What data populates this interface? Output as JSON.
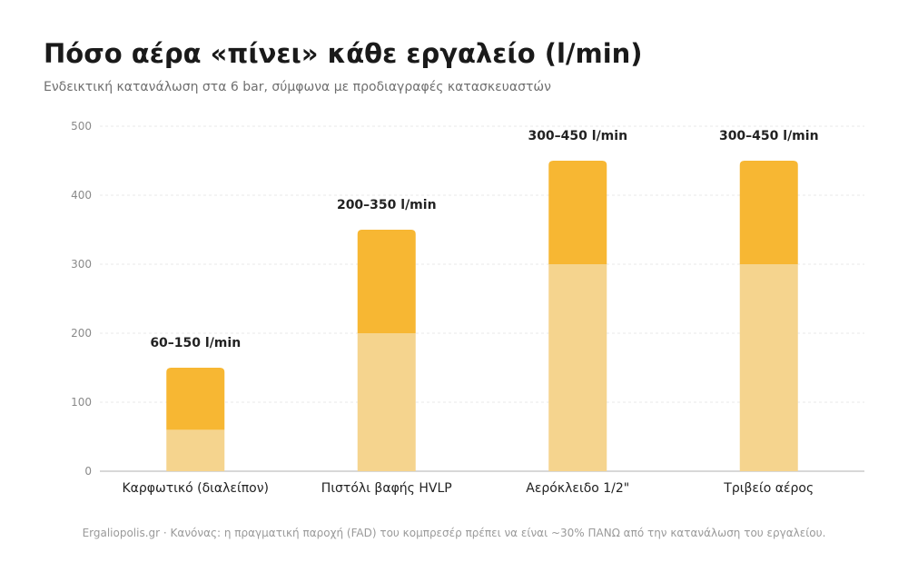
{
  "header": {
    "title": "Πόσο αέρα «πίνει» κάθε εργαλείο (l/min)",
    "subtitle": "Ενδεικτική κατανάλωση στα 6 bar, σύμφωνα με προδιαγραφές κατασκευαστών"
  },
  "footer": {
    "note": "Ergaliopolis.gr · Κανόνας: η πραγματική παροχή (FAD) του κομπρεσέρ πρέπει να είναι ~30% ΠΑΝΩ από την κατανάλωση του εργαλείου."
  },
  "colors": {
    "min_part": "#f5d48e",
    "range_part": "#f7b733",
    "grid": "#e8e8e8",
    "axis": "#cccccc",
    "tick_text": "#8a8a8a",
    "category_text": "#222222",
    "label_text": "#222222"
  },
  "chart_data": {
    "type": "bar",
    "stacked": true,
    "categories": [
      "Καρφωτικό (διαλείπον)",
      "Πιστόλι βαφής HVLP",
      "Αερόκλειδο 1/2\"",
      "Τριβείο αέρος"
    ],
    "series": [
      {
        "values": [
          60,
          200,
          300,
          300
        ]
      },
      {
        "values": [
          90,
          150,
          150,
          150
        ]
      }
    ],
    "data_labels": [
      "60–150 l/min",
      "200–350 l/min",
      "300–450 l/min",
      "300–450 l/min"
    ],
    "y_ticks": [
      0,
      100,
      200,
      300,
      400,
      500
    ],
    "ylim": [
      0,
      500
    ],
    "grid": true,
    "legend": "none"
  }
}
